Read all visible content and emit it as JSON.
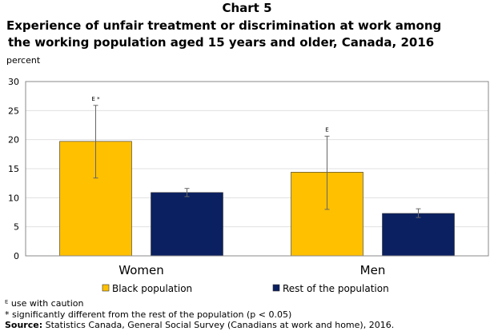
{
  "header": {
    "chart_number": "Chart 5",
    "title_line1": "Experience of unfair treatment or discrimination  at work among",
    "title_line2": "the working population aged  15 years and older, Canada, 2016"
  },
  "chart_data": {
    "type": "bar",
    "title": "Experience of unfair treatment or discrimination at work among the working population aged 15 years and older, Canada, 2016",
    "ylabel": "percent",
    "xlabel": "",
    "categories": [
      "Women",
      "Men"
    ],
    "ylim": [
      0,
      30
    ],
    "yticks": [
      0,
      5,
      10,
      15,
      20,
      25,
      30
    ],
    "grid": true,
    "legend_position": "bottom",
    "series": [
      {
        "name": "Black population",
        "color": "#ffc000",
        "values": [
          19.7,
          14.4
        ],
        "error_low": [
          13.4,
          8.0
        ],
        "error_high": [
          25.9,
          20.6
        ],
        "annotations": [
          "E *",
          "E"
        ]
      },
      {
        "name": "Rest of the population",
        "color": "#0a2060",
        "values": [
          10.9,
          7.3
        ],
        "error_low": [
          10.2,
          6.6
        ],
        "error_high": [
          11.6,
          8.1
        ],
        "annotations": [
          "",
          ""
        ]
      }
    ]
  },
  "notes": {
    "note1": "ᴱ use with caution",
    "note2": "* significantly different from the rest of the population (p < 0.05)",
    "source_label": "Source:",
    "source_text": " Statistics Canada, General Social Survey (Canadians at work and home), 2016."
  }
}
